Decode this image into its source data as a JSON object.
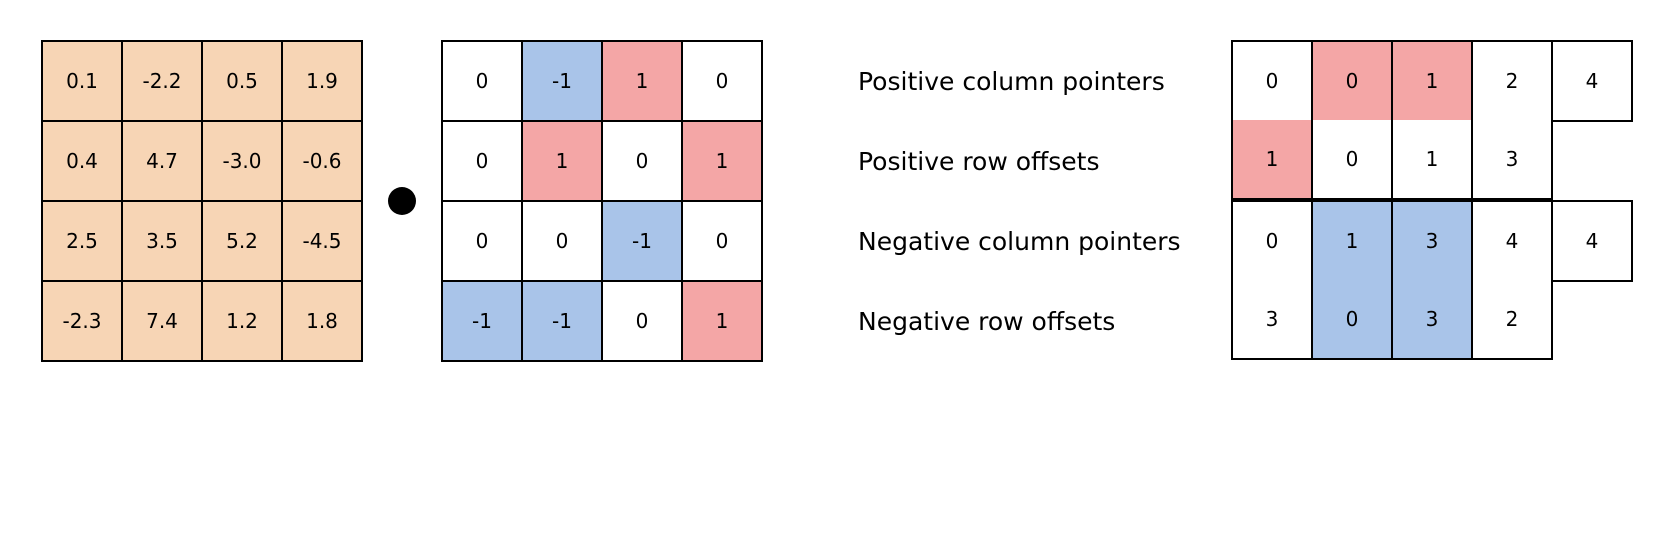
{
  "dense_matrix": [
    [
      "0.1",
      "-2.2",
      "0.5",
      "1.9"
    ],
    [
      "0.4",
      "4.7",
      "-3.0",
      "-0.6"
    ],
    [
      "2.5",
      "3.5",
      "5.2",
      "-4.5"
    ],
    [
      "-2.3",
      "7.4",
      "1.2",
      "1.8"
    ]
  ],
  "ternary_matrix": [
    [
      "0",
      "-1",
      "1",
      "0"
    ],
    [
      "0",
      "1",
      "0",
      "1"
    ],
    [
      "0",
      "0",
      "-1",
      "0"
    ],
    [
      "-1",
      "-1",
      "0",
      "1"
    ]
  ],
  "labels": {
    "positive_column_pointers": "Positive column pointers",
    "positive_row_offsets": "Positive row offsets",
    "negative_column_pointers": "Negative column pointers",
    "negative_row_offsets": "Negative row offsets"
  },
  "arrays": {
    "positive_column_pointers": [
      "0",
      "0",
      "1",
      "2",
      "4"
    ],
    "positive_row_offsets": [
      "1",
      "0",
      "1",
      "3"
    ],
    "negative_column_pointers": [
      "0",
      "1",
      "3",
      "4",
      "4"
    ],
    "negative_row_offsets": [
      "3",
      "0",
      "3",
      "2"
    ]
  },
  "colors": {
    "dense_fill": "#f7d5b5",
    "positive_highlight": "#f4a6a6",
    "negative_highlight": "#a9c4e9",
    "border": "#000000"
  }
}
